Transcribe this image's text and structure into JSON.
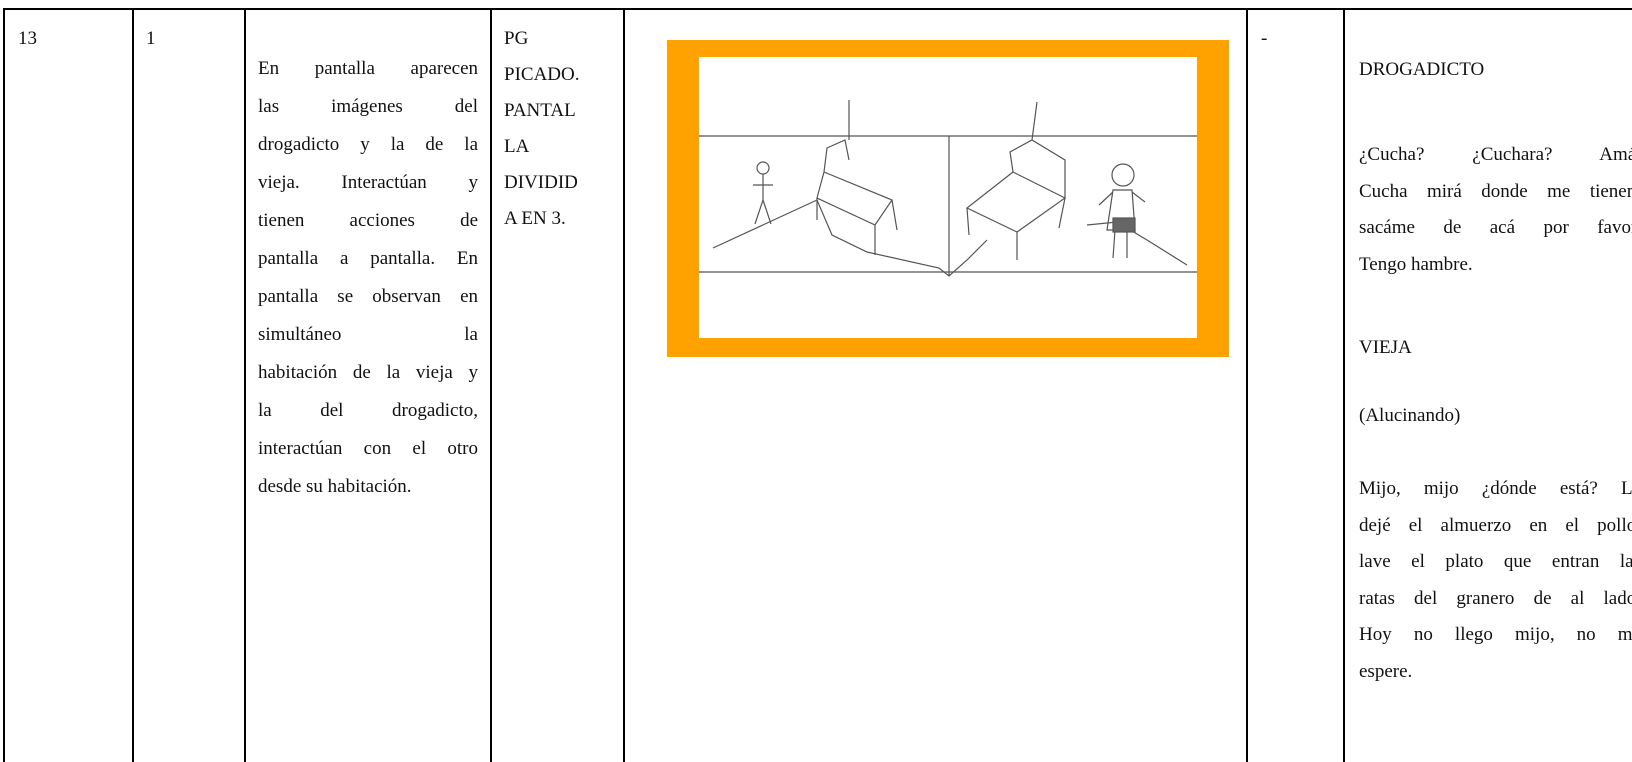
{
  "table": {
    "row": {
      "scene": "13",
      "shot": "1",
      "description": [
        "En pantalla aparecen",
        "las imágenes del",
        "drogadicto y la de la",
        "vieja. Interactúan y",
        "tienen acciones de",
        "pantalla a pantalla. En",
        "pantalla se observan en",
        "simultáneo la",
        "habitación de la vieja y",
        "la del drogadicto,",
        "interactúan con el otro",
        "desde su habitación."
      ],
      "shot_type": [
        "PG",
        "PICADO.",
        "PANTAL",
        "LA",
        "DIVIDID",
        "A EN 3."
      ],
      "sound": "-",
      "dialogue": [
        {
          "speaker": "DROGADICTO",
          "lines": [
            "¿Cucha? ¿Cuchara? Amá.",
            "Cucha mirá donde me tienen,",
            "sacáme de acá por favor.",
            "Tengo hambre."
          ]
        },
        {
          "speaker": "VIEJA",
          "direction": "(Alucinando)",
          "lines": [
            "Mijo, mijo ¿dónde está? Le",
            "dejé el almuerzo en el pollo,",
            "lave el plato que entran las",
            "ratas del granero de al lado.",
            "Hoy no llego mijo, no me",
            "espere."
          ]
        }
      ]
    }
  }
}
